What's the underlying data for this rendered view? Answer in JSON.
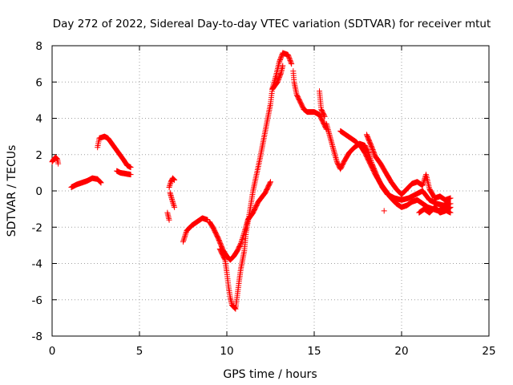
{
  "chart_data": {
    "type": "scatter",
    "title": "Day 272 of 2022, Sidereal Day-to-day VTEC variation (SDTVAR) for receiver mtut",
    "xlabel": "GPS time / hours",
    "ylabel": "SDTVAR / TECUs",
    "xlim": [
      0,
      25
    ],
    "ylim": [
      -8,
      8
    ],
    "xticks": [
      0,
      5,
      10,
      15,
      20,
      25
    ],
    "yticks": [
      -8,
      -6,
      -4,
      -2,
      0,
      2,
      4,
      6,
      8
    ],
    "xtick_labels": [
      "0",
      "5",
      "10",
      "15",
      "20",
      "25"
    ],
    "ytick_labels": [
      "-8",
      "-6",
      "-4",
      "-2",
      "0",
      "2",
      "4",
      "6",
      "8"
    ],
    "grid": true,
    "marker": "+",
    "series": [
      {
        "name": "SDTVAR",
        "color": "#ff0000",
        "segments": [
          [
            [
              0.0,
              1.6
            ],
            [
              0.1,
              1.75
            ],
            [
              0.2,
              1.85
            ],
            [
              0.3,
              1.75
            ],
            [
              0.35,
              1.5
            ]
          ],
          [
            [
              1.1,
              0.2
            ],
            [
              1.4,
              0.35
            ],
            [
              1.7,
              0.45
            ],
            [
              2.0,
              0.55
            ],
            [
              2.3,
              0.7
            ],
            [
              2.6,
              0.65
            ],
            [
              2.8,
              0.45
            ]
          ],
          [
            [
              2.6,
              2.4
            ],
            [
              2.7,
              2.9
            ],
            [
              3.0,
              3.0
            ],
            [
              3.2,
              2.9
            ],
            [
              3.5,
              2.5
            ],
            [
              3.8,
              2.1
            ],
            [
              4.1,
              1.7
            ],
            [
              4.3,
              1.4
            ],
            [
              4.5,
              1.3
            ]
          ],
          [
            [
              3.7,
              1.1
            ],
            [
              3.9,
              1.0
            ],
            [
              4.2,
              0.95
            ],
            [
              4.5,
              0.9
            ]
          ],
          [
            [
              6.6,
              -1.2
            ],
            [
              6.7,
              -1.6
            ]
          ],
          [
            [
              6.7,
              0.2
            ],
            [
              6.8,
              0.5
            ],
            [
              6.9,
              0.7
            ],
            [
              7.0,
              0.6
            ]
          ],
          [
            [
              6.75,
              -0.1
            ],
            [
              6.9,
              -0.6
            ],
            [
              7.0,
              -0.9
            ]
          ],
          [
            [
              7.5,
              -2.8
            ],
            [
              7.7,
              -2.2
            ],
            [
              8.0,
              -1.9
            ],
            [
              8.3,
              -1.7
            ],
            [
              8.6,
              -1.5
            ],
            [
              8.9,
              -1.6
            ]
          ],
          [
            [
              9.0,
              -1.7
            ],
            [
              9.2,
              -2.0
            ],
            [
              9.5,
              -2.6
            ],
            [
              9.8,
              -3.3
            ],
            [
              10.0,
              -3.6
            ],
            [
              10.2,
              -3.8
            ],
            [
              10.4,
              -3.6
            ],
            [
              10.6,
              -3.3
            ],
            [
              10.8,
              -2.9
            ],
            [
              11.0,
              -2.3
            ],
            [
              11.2,
              -1.6
            ],
            [
              11.5,
              -1.2
            ],
            [
              11.8,
              -0.6
            ],
            [
              12.2,
              -0.1
            ],
            [
              12.5,
              0.5
            ]
          ],
          [
            [
              9.6,
              -3.2
            ],
            [
              9.9,
              -3.8
            ],
            [
              10.0,
              -4.5
            ],
            [
              10.1,
              -5.3
            ],
            [
              10.2,
              -5.9
            ],
            [
              10.3,
              -6.3
            ],
            [
              10.5,
              -6.5
            ],
            [
              10.7,
              -5.0
            ],
            [
              10.8,
              -4.3
            ],
            [
              11.0,
              -3.3
            ],
            [
              11.1,
              -2.3
            ],
            [
              11.3,
              -1.2
            ],
            [
              11.5,
              0.0
            ],
            [
              11.7,
              0.9
            ],
            [
              11.9,
              1.8
            ],
            [
              12.1,
              2.8
            ],
            [
              12.3,
              3.8
            ],
            [
              12.5,
              4.8
            ],
            [
              12.6,
              5.6
            ],
            [
              12.8,
              6.3
            ],
            [
              13.0,
              7.1
            ],
            [
              13.2,
              7.6
            ],
            [
              13.5,
              7.5
            ],
            [
              13.7,
              7.0
            ]
          ],
          [
            [
              12.6,
              5.6
            ],
            [
              12.9,
              6.0
            ],
            [
              13.1,
              6.5
            ],
            [
              13.2,
              6.9
            ]
          ],
          [
            [
              13.8,
              6.6
            ],
            [
              13.85,
              6.0
            ],
            [
              14.0,
              5.3
            ],
            [
              14.2,
              4.9
            ],
            [
              14.4,
              4.5
            ],
            [
              14.6,
              4.35
            ],
            [
              15.0,
              4.35
            ],
            [
              15.3,
              4.2
            ],
            [
              15.5,
              3.8
            ],
            [
              15.7,
              3.4
            ]
          ],
          [
            [
              15.3,
              5.5
            ],
            [
              15.4,
              4.5
            ],
            [
              15.6,
              4.1
            ]
          ],
          [
            [
              15.7,
              3.7
            ],
            [
              15.9,
              3.0
            ],
            [
              16.1,
              2.3
            ],
            [
              16.3,
              1.6
            ],
            [
              16.5,
              1.2
            ],
            [
              16.7,
              1.6
            ],
            [
              17.0,
              2.1
            ],
            [
              17.3,
              2.4
            ],
            [
              17.6,
              2.6
            ],
            [
              17.9,
              2.5
            ],
            [
              18.1,
              2.1
            ],
            [
              18.3,
              1.5
            ],
            [
              18.6,
              0.8
            ],
            [
              18.9,
              0.2
            ],
            [
              19.2,
              -0.2
            ],
            [
              19.6,
              -0.4
            ],
            [
              20.0,
              -0.5
            ],
            [
              20.4,
              -0.4
            ],
            [
              20.8,
              -0.2
            ],
            [
              21.2,
              0.0
            ],
            [
              21.6,
              -0.5
            ],
            [
              22.0,
              -0.7
            ],
            [
              22.4,
              -0.8
            ],
            [
              22.8,
              -0.7
            ]
          ],
          [
            [
              16.5,
              3.3
            ],
            [
              16.8,
              3.1
            ],
            [
              17.1,
              2.9
            ],
            [
              17.4,
              2.7
            ],
            [
              17.7,
              2.4
            ],
            [
              17.9,
              2.1
            ],
            [
              18.1,
              1.7
            ],
            [
              18.3,
              1.3
            ],
            [
              18.5,
              0.9
            ],
            [
              18.8,
              0.4
            ],
            [
              19.1,
              0.0
            ],
            [
              19.4,
              -0.4
            ],
            [
              19.7,
              -0.7
            ],
            [
              20.0,
              -0.9
            ],
            [
              20.3,
              -0.8
            ],
            [
              20.6,
              -0.6
            ],
            [
              20.9,
              -0.5
            ],
            [
              21.2,
              -0.7
            ],
            [
              21.5,
              -0.9
            ],
            [
              21.8,
              -1.0
            ],
            [
              22.1,
              -1.1
            ],
            [
              22.4,
              -1.0
            ],
            [
              22.8,
              -1.2
            ]
          ],
          [
            [
              18.0,
              3.1
            ],
            [
              18.3,
              2.4
            ],
            [
              18.5,
              1.9
            ],
            [
              18.8,
              1.5
            ],
            [
              19.1,
              1.0
            ],
            [
              19.4,
              0.5
            ],
            [
              19.7,
              0.1
            ],
            [
              20.0,
              -0.2
            ],
            [
              20.3,
              0.1
            ],
            [
              20.6,
              0.4
            ],
            [
              20.9,
              0.5
            ],
            [
              21.2,
              0.3
            ],
            [
              21.4,
              0.9
            ],
            [
              21.6,
              0.1
            ],
            [
              21.9,
              -0.4
            ],
            [
              22.2,
              -0.3
            ],
            [
              22.5,
              -0.5
            ],
            [
              22.8,
              -0.4
            ]
          ],
          [
            [
              19.0,
              -1.1
            ]
          ],
          [
            [
              21.0,
              -1.2
            ],
            [
              21.3,
              -1.0
            ],
            [
              21.6,
              -1.2
            ],
            [
              21.9,
              -0.9
            ],
            [
              22.2,
              -1.2
            ],
            [
              22.5,
              -1.1
            ],
            [
              22.8,
              -0.9
            ]
          ]
        ]
      }
    ]
  }
}
